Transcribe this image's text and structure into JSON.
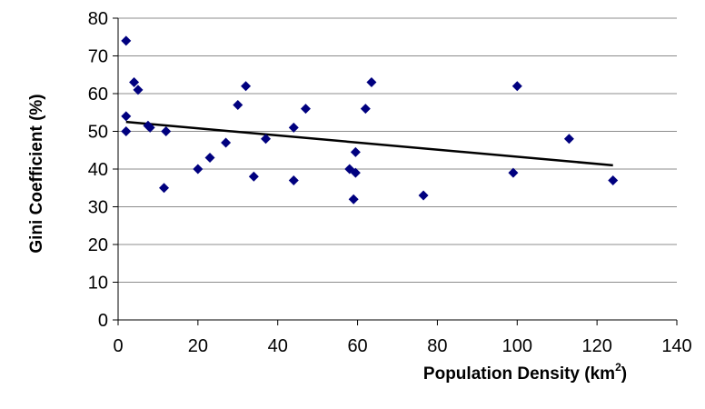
{
  "chart_data": {
    "type": "scatter",
    "xlabel": "Population Density (km",
    "xlabel_sup": "2",
    "xlabel_close": ")",
    "ylabel": "Gini Coefficient (%)",
    "xlim": [
      0,
      140
    ],
    "ylim": [
      0,
      80
    ],
    "x_ticks": [
      0,
      20,
      40,
      60,
      80,
      100,
      120,
      140
    ],
    "y_ticks": [
      0,
      10,
      20,
      30,
      40,
      50,
      60,
      70,
      80
    ],
    "grid": "horizontal",
    "marker": "diamond",
    "marker_color": "#00007F",
    "points": [
      {
        "x": 2,
        "y": 74
      },
      {
        "x": 2,
        "y": 54
      },
      {
        "x": 2,
        "y": 50
      },
      {
        "x": 4,
        "y": 63
      },
      {
        "x": 5,
        "y": 61
      },
      {
        "x": 7.5,
        "y": 51.5
      },
      {
        "x": 8,
        "y": 51
      },
      {
        "x": 11.5,
        "y": 35
      },
      {
        "x": 12,
        "y": 50
      },
      {
        "x": 20,
        "y": 40
      },
      {
        "x": 23,
        "y": 43
      },
      {
        "x": 27,
        "y": 47
      },
      {
        "x": 30,
        "y": 57
      },
      {
        "x": 32,
        "y": 62
      },
      {
        "x": 34,
        "y": 38
      },
      {
        "x": 37,
        "y": 48
      },
      {
        "x": 44,
        "y": 37
      },
      {
        "x": 44,
        "y": 51
      },
      {
        "x": 47,
        "y": 56
      },
      {
        "x": 58,
        "y": 40
      },
      {
        "x": 59,
        "y": 32
      },
      {
        "x": 59.5,
        "y": 44.5
      },
      {
        "x": 59.5,
        "y": 39
      },
      {
        "x": 62,
        "y": 56
      },
      {
        "x": 63.5,
        "y": 63
      },
      {
        "x": 76.5,
        "y": 33
      },
      {
        "x": 99,
        "y": 39
      },
      {
        "x": 100,
        "y": 62
      },
      {
        "x": 113,
        "y": 48
      },
      {
        "x": 124,
        "y": 37
      }
    ],
    "trendline": {
      "type": "linear",
      "x": [
        2,
        124
      ],
      "y": [
        52.5,
        41
      ]
    }
  }
}
